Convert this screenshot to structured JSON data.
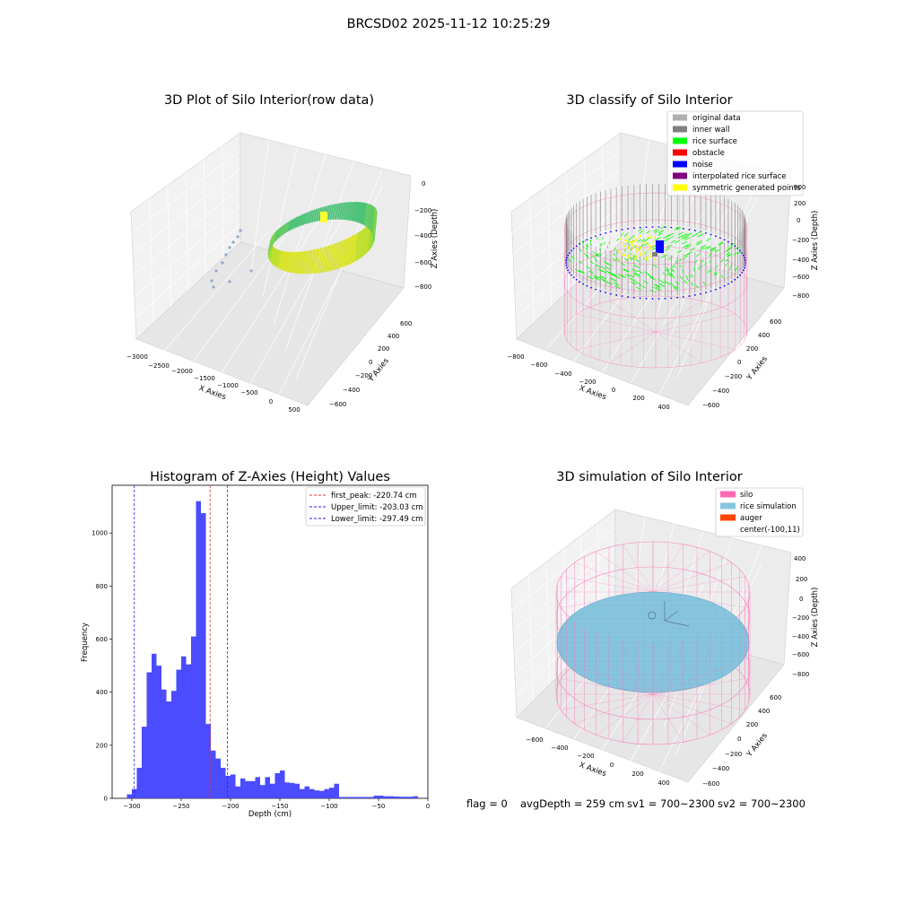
{
  "figure": {
    "suptitle": "BRCSD02 2025-11-12 10:25:29",
    "status": {
      "flag": "flag = 0",
      "avg_depth": "avgDepth = 259 cm",
      "sv1": "sv1 = 700~2300",
      "sv2": "sv2 = 700~2300"
    }
  },
  "colors": {
    "hist": "#4b4bff",
    "peak_line": "#e03030",
    "limit_line": "#2020e0",
    "silo": "#ff69b4",
    "rice_sim": "#87c5df",
    "auger": "#ff4500",
    "rice_surface": "#00ff00",
    "inner_wall": "#808080",
    "original": "#b0b0b0",
    "noise": "#0000ff",
    "obstacle": "#ff0000",
    "interp": "#800080",
    "symmetric": "#ffff00"
  },
  "chart_data": [
    {
      "type": "scatter",
      "title": "3D Plot of Silo Interior(row data)",
      "xlabel": "X Axies",
      "ylabel": "Y Axies",
      "zlabel": "Z Axies (Depth)",
      "x_ticks": [
        "−3000",
        "−2500",
        "−2000",
        "−1500",
        "−1000",
        "−500",
        "0",
        "500"
      ],
      "y_ticks": [
        "−600",
        "−400",
        "−200",
        "0",
        "200",
        "400",
        "600"
      ],
      "z_ticks": [
        "0",
        "−200",
        "−400",
        "−600",
        "−800"
      ],
      "xlim": [
        -3000,
        500
      ],
      "ylim": [
        -600,
        600
      ],
      "zlim": [
        -900,
        0
      ]
    },
    {
      "type": "scatter",
      "title": "3D classify of Silo Interior",
      "xlabel": "X Axies",
      "ylabel": "Y Axies",
      "zlabel": "Z Axies (Depth)",
      "x_ticks": [
        "−800",
        "−600",
        "−400",
        "−200",
        "0",
        "200",
        "400"
      ],
      "y_ticks": [
        "−600",
        "−400",
        "−200",
        "0",
        "200",
        "400",
        "600"
      ],
      "z_ticks": [
        "400",
        "200",
        "0",
        "−200",
        "−400",
        "−600",
        "−800"
      ],
      "legend": [
        {
          "label": "original data",
          "color": "#b0b0b0"
        },
        {
          "label": "inner wall",
          "color": "#808080"
        },
        {
          "label": "rice surface",
          "color": "#00ff00"
        },
        {
          "label": "obstacle",
          "color": "#ff0000"
        },
        {
          "label": "noise",
          "color": "#0000ff"
        },
        {
          "label": "interpolated rice surface",
          "color": "#800080"
        },
        {
          "label": "symmetric generated points",
          "color": "#ffff00"
        }
      ],
      "legend_position": "upper-right"
    },
    {
      "type": "bar",
      "title": "Histogram of Z-Axies (Height) Values",
      "xlabel": "Depth (cm)",
      "ylabel": "Frequency",
      "xlim": [
        -320,
        0
      ],
      "ylim": [
        0,
        1180
      ],
      "x_ticks": [
        -300,
        -250,
        -200,
        -150,
        -100,
        -50,
        0
      ],
      "x_tick_labels": [
        "−300",
        "−250",
        "−200",
        "−150",
        "−100",
        "−50",
        "0"
      ],
      "y_ticks": [
        0,
        200,
        400,
        600,
        800,
        1000
      ],
      "bin_width": 5,
      "bins_start": [
        -305,
        -300,
        -295,
        -290,
        -285,
        -280,
        -275,
        -270,
        -265,
        -260,
        -255,
        -250,
        -245,
        -240,
        -235,
        -230,
        -225,
        -220,
        -215,
        -210,
        -205,
        -200,
        -195,
        -190,
        -185,
        -180,
        -175,
        -170,
        -165,
        -160,
        -155,
        -150,
        -145,
        -140,
        -135,
        -130,
        -125,
        -120,
        -115,
        -110,
        -105,
        -100,
        -95,
        -90,
        -85,
        -80,
        -75,
        -70,
        -65,
        -60,
        -55,
        -50,
        -45,
        -40,
        -35,
        -30,
        -25,
        -20,
        -15
      ],
      "values": [
        15,
        35,
        115,
        270,
        475,
        545,
        500,
        410,
        365,
        405,
        485,
        535,
        505,
        610,
        1120,
        1075,
        280,
        180,
        150,
        115,
        85,
        90,
        45,
        75,
        65,
        65,
        80,
        50,
        80,
        55,
        95,
        105,
        60,
        58,
        55,
        35,
        45,
        35,
        30,
        28,
        35,
        40,
        55,
        5,
        5,
        5,
        5,
        5,
        5,
        5,
        10,
        10,
        8,
        8,
        7,
        6,
        6,
        6,
        8
      ],
      "vlines": [
        {
          "x": -220.74,
          "label": "first_peak: -220.74 cm",
          "color": "#e03030"
        },
        {
          "x": -203.03,
          "label": "Upper_limit: -203.03 cm",
          "color": "#2020e0"
        },
        {
          "x": -297.49,
          "label": "Lower_limit: -297.49 cm",
          "color": "#2020e0"
        }
      ],
      "legend_position": "upper-right"
    },
    {
      "type": "scatter",
      "title": "3D simulation of Silo Interior",
      "xlabel": "X Axies",
      "ylabel": "Y Axies",
      "zlabel": "Z Axies (Depth)",
      "x_ticks": [
        "−600",
        "−400",
        "−200",
        "0",
        "200",
        "400"
      ],
      "y_ticks": [
        "−600",
        "−400",
        "−200",
        "0",
        "200",
        "400",
        "600"
      ],
      "z_ticks": [
        "400",
        "200",
        "0",
        "−200",
        "−400",
        "−600",
        "−800"
      ],
      "legend": [
        {
          "label": "silo",
          "color": "#ff69b4"
        },
        {
          "label": "rice simulation",
          "color": "#87c5df"
        },
        {
          "label": "auger",
          "color": "#ff4500"
        },
        {
          "label": "center(-100,11)",
          "color": ""
        }
      ],
      "legend_position": "upper-right"
    }
  ]
}
